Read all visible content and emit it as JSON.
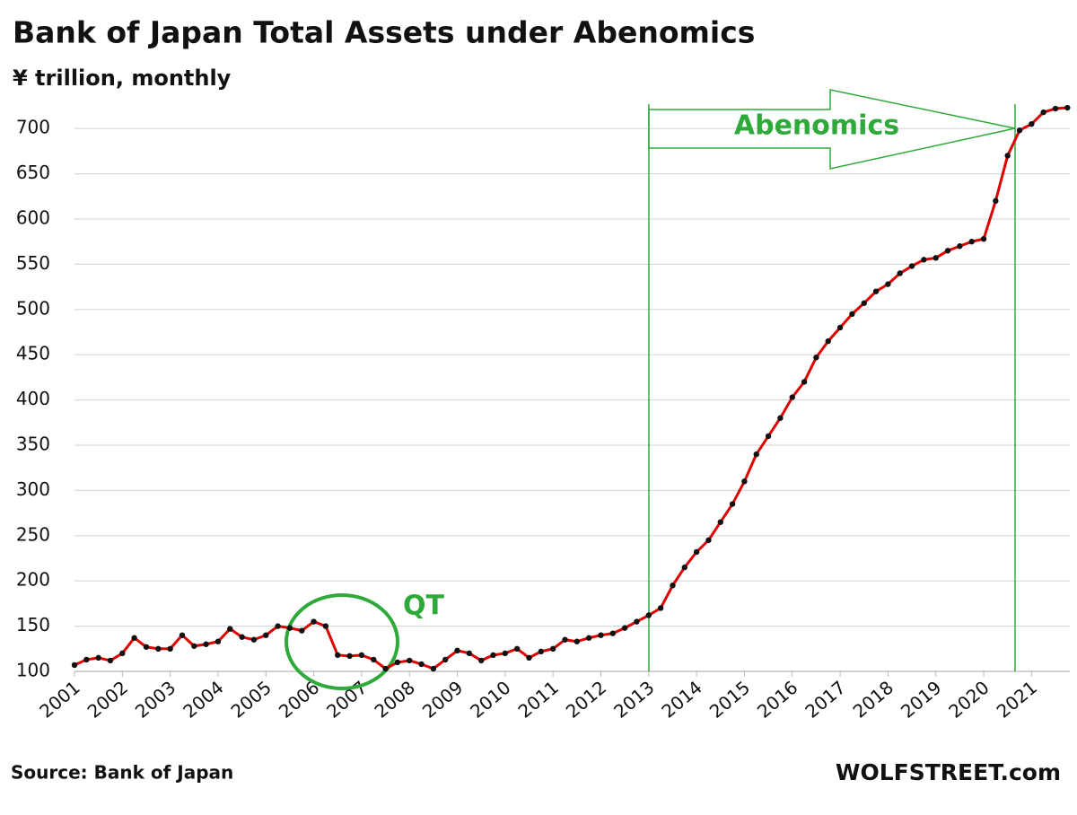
{
  "chart_data": {
    "type": "line",
    "title": "Bank of Japan Total Assets under Abenomics",
    "subtitle": "¥ trillion, monthly",
    "annotations": {
      "abenomics": "Abenomics",
      "qt": "QT"
    },
    "source": "Source: Bank of Japan",
    "credit": "WOLFSTREET.com",
    "x": [
      2001,
      2001.25,
      2001.5,
      2001.75,
      2002,
      2002.25,
      2002.5,
      2002.75,
      2003,
      2003.25,
      2003.5,
      2003.75,
      2004,
      2004.25,
      2004.5,
      2004.75,
      2005,
      2005.25,
      2005.5,
      2005.75,
      2006,
      2006.25,
      2006.5,
      2006.75,
      2007,
      2007.25,
      2007.5,
      2007.75,
      2008,
      2008.25,
      2008.5,
      2008.75,
      2009,
      2009.25,
      2009.5,
      2009.75,
      2010,
      2010.25,
      2010.5,
      2010.75,
      2011,
      2011.25,
      2011.5,
      2011.75,
      2012,
      2012.25,
      2012.5,
      2012.75,
      2013,
      2013.25,
      2013.5,
      2013.75,
      2014,
      2014.25,
      2014.5,
      2014.75,
      2015,
      2015.25,
      2015.5,
      2015.75,
      2016,
      2016.25,
      2016.5,
      2016.75,
      2017,
      2017.25,
      2017.5,
      2017.75,
      2018,
      2018.25,
      2018.5,
      2018.75,
      2019,
      2019.25,
      2019.5,
      2019.75,
      2020,
      2020.25,
      2020.5,
      2020.75,
      2021,
      2021.25,
      2021.5,
      2021.75
    ],
    "series": [
      {
        "color": "#e00000",
        "marker_color": "#111111",
        "values": [
          107,
          113,
          115,
          112,
          120,
          137,
          127,
          125,
          125,
          140,
          128,
          130,
          133,
          147,
          138,
          135,
          140,
          150,
          148,
          145,
          155,
          150,
          118,
          117,
          118,
          113,
          103,
          110,
          112,
          108,
          103,
          113,
          123,
          120,
          112,
          118,
          120,
          125,
          115,
          122,
          125,
          135,
          133,
          137,
          140,
          142,
          148,
          155,
          162,
          170,
          195,
          215,
          232,
          245,
          265,
          285,
          310,
          340,
          360,
          380,
          403,
          420,
          447,
          465,
          480,
          495,
          507,
          520,
          528,
          540,
          548,
          555,
          557,
          565,
          570,
          575,
          578,
          620,
          670,
          698,
          705,
          718,
          722,
          723
        ]
      }
    ],
    "xlim": [
      2001,
      2021.8
    ],
    "xticks": [
      2001,
      2002,
      2003,
      2004,
      2005,
      2006,
      2007,
      2008,
      2009,
      2010,
      2011,
      2012,
      2013,
      2014,
      2015,
      2016,
      2017,
      2018,
      2019,
      2020,
      2021
    ],
    "ylim": [
      100,
      725
    ],
    "yticks": [
      100,
      150,
      200,
      250,
      300,
      350,
      400,
      450,
      500,
      550,
      600,
      650,
      700
    ],
    "grid": true
  }
}
